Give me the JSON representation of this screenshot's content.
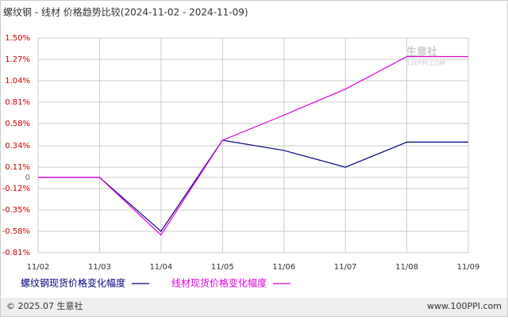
{
  "chart_data": {
    "type": "line",
    "title": "螺纹钢 - 线材 价格趋势比较(2024-11-02 - 2024-11-09)",
    "categories": [
      "11/02",
      "11/03",
      "11/04",
      "11/05",
      "11/06",
      "11/07",
      "11/08",
      "11/09"
    ],
    "series": [
      {
        "name": "螺纹钢现货价格变化幅度",
        "color": "#000080",
        "values": [
          0,
          0,
          -0.58,
          0.4,
          0.29,
          0.11,
          0.38,
          0.38
        ]
      },
      {
        "name": "线材现货价格变化幅度",
        "color": "#e000e0",
        "values": [
          0,
          0,
          -0.62,
          0.4,
          0.67,
          0.95,
          1.3,
          1.3
        ]
      }
    ],
    "ylim": [
      -0.81,
      1.5
    ],
    "yticks": [
      {
        "value": 1.5,
        "label": "1.50%"
      },
      {
        "value": 1.27,
        "label": "1.27%"
      },
      {
        "value": 1.04,
        "label": "1.04%"
      },
      {
        "value": 0.81,
        "label": "0.81%"
      },
      {
        "value": 0.58,
        "label": "0.58%"
      },
      {
        "value": 0.34,
        "label": "0.34%"
      },
      {
        "value": 0.11,
        "label": "0.11%"
      },
      0,
      {
        "value": -0.12,
        "label": "-0.12%"
      },
      {
        "value": -0.35,
        "label": "-0.35%"
      },
      {
        "value": -0.58,
        "label": "-0.58%"
      },
      {
        "value": -0.81,
        "label": "-0.81%"
      }
    ],
    "grid": true,
    "watermark": [
      "生意社",
      "100PPI.COM"
    ],
    "footer": [
      "© 2025.07 生意社",
      "www.100PPI.com"
    ]
  }
}
